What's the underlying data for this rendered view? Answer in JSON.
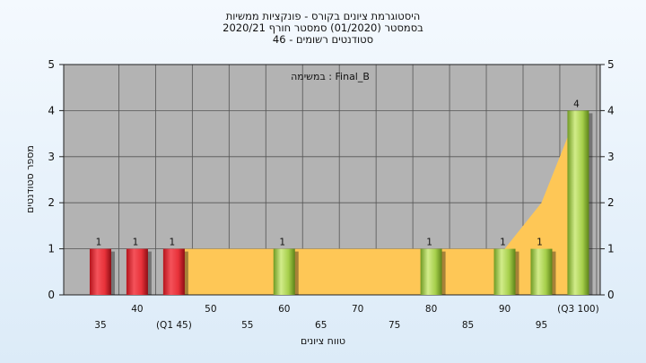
{
  "chart_data": {
    "type": "bar",
    "title_lines": [
      "היסטוגרמת ציונים בקורס - פונקציות ממשיות",
      "בסמסטר (01/2020) סמסטר חורף 2020/21",
      "סטודנטים רשומים - 46"
    ],
    "annotation": "במשימה : Final_B",
    "xlabel": "טווח ציונים",
    "ylabel": "מספר סטודנטים",
    "ylim": [
      0,
      5
    ],
    "yticks": [
      0,
      1,
      2,
      3,
      4,
      5
    ],
    "xlim": [
      30,
      103
    ],
    "x_tick_labels": [
      {
        "x": 35,
        "label": "35",
        "row": 2
      },
      {
        "x": 40,
        "label": "40",
        "row": 1
      },
      {
        "x": 45,
        "label": "(Q1 45)",
        "row": 2
      },
      {
        "x": 50,
        "label": "50",
        "row": 1
      },
      {
        "x": 55,
        "label": "55",
        "row": 2
      },
      {
        "x": 60,
        "label": "60",
        "row": 1
      },
      {
        "x": 65,
        "label": "65",
        "row": 2
      },
      {
        "x": 70,
        "label": "70",
        "row": 1
      },
      {
        "x": 75,
        "label": "75",
        "row": 2
      },
      {
        "x": 80,
        "label": "80",
        "row": 1
      },
      {
        "x": 85,
        "label": "85",
        "row": 2
      },
      {
        "x": 90,
        "label": "90",
        "row": 1
      },
      {
        "x": 95,
        "label": "95",
        "row": 2
      },
      {
        "x": 100,
        "label": "(Q3 100)",
        "row": 1
      }
    ],
    "bars": [
      {
        "x": 35,
        "value": 1,
        "color": "red"
      },
      {
        "x": 40,
        "value": 1,
        "color": "red"
      },
      {
        "x": 45,
        "value": 1,
        "color": "red"
      },
      {
        "x": 60,
        "value": 1,
        "color": "green"
      },
      {
        "x": 80,
        "value": 1,
        "color": "green"
      },
      {
        "x": 90,
        "value": 1,
        "color": "green"
      },
      {
        "x": 95,
        "value": 1,
        "color": "green"
      },
      {
        "x": 100,
        "value": 4,
        "color": "green"
      }
    ],
    "iqr_area": {
      "x": [
        45,
        90,
        95,
        100
      ],
      "y": [
        1,
        1,
        2,
        4
      ]
    },
    "colors": {
      "plot_bg": "#b3b3b3",
      "grid": "#555555",
      "area": "#fec756",
      "bar_red": "#e8323a",
      "bar_green": "#a6cf4b"
    }
  }
}
